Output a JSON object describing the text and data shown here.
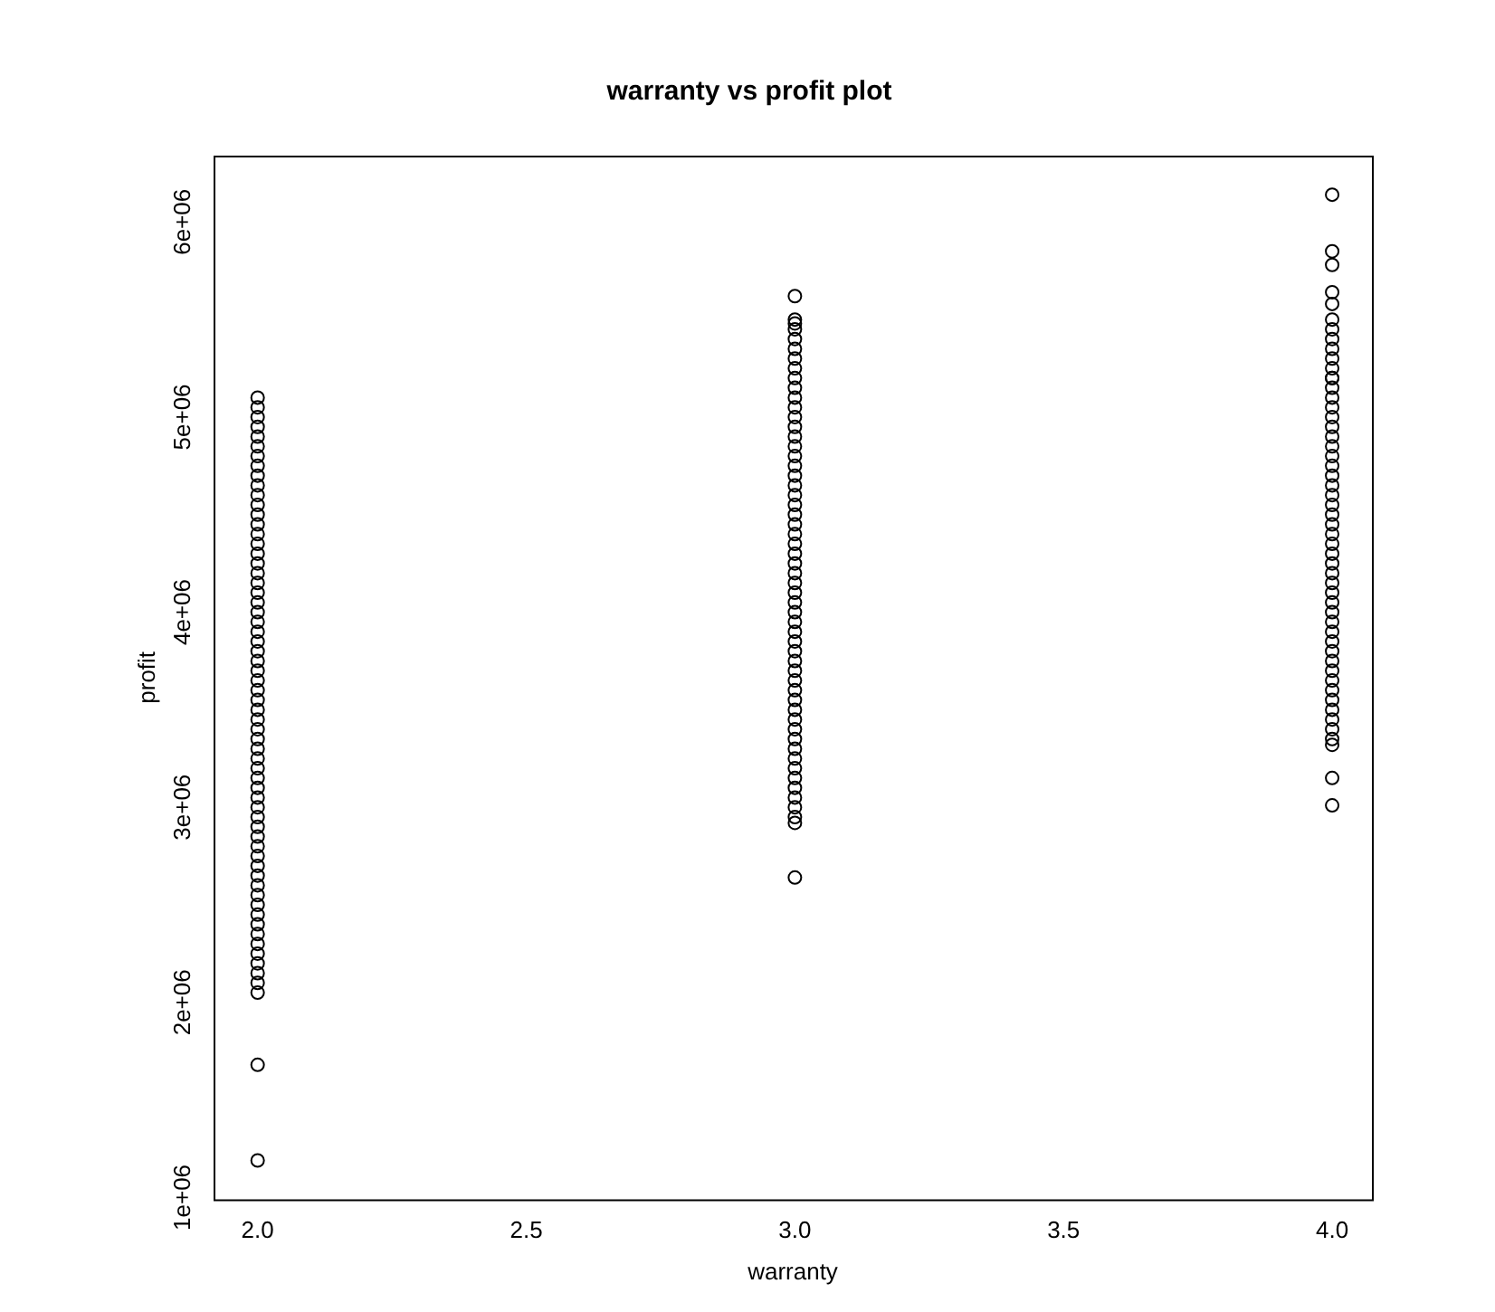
{
  "chart_data": {
    "type": "scatter",
    "title": "warranty vs profit plot",
    "xlabel": "warranty",
    "ylabel": "profit",
    "marker": "circle",
    "grid": false,
    "legend": false,
    "xlim": [
      1.918,
      4.074
    ],
    "ylim": [
      990000.0,
      6340000.0
    ],
    "xticks": [
      {
        "value": 2,
        "label": "2.0"
      },
      {
        "value": 2.5,
        "label": "2.5"
      },
      {
        "value": 3,
        "label": "3.0"
      },
      {
        "value": 3.5,
        "label": "3.5"
      },
      {
        "value": 4,
        "label": "4.0"
      }
    ],
    "yticks": [
      {
        "value": 1000000.0,
        "label": "1e+06"
      },
      {
        "value": 2000000.0,
        "label": "2e+06"
      },
      {
        "value": 3000000.0,
        "label": "3e+06"
      },
      {
        "value": 4000000.0,
        "label": "4e+06"
      },
      {
        "value": 5000000.0,
        "label": "5e+06"
      },
      {
        "value": 6000000.0,
        "label": "6e+06"
      }
    ],
    "series": [
      {
        "color": "#000000",
        "x": [
          2,
          2,
          2,
          2,
          2,
          2,
          2,
          2,
          2,
          2,
          2,
          2,
          2,
          2,
          2,
          2,
          2,
          2,
          2,
          2,
          2,
          2,
          2,
          2,
          2,
          2,
          2,
          2,
          2,
          2,
          2,
          2,
          2,
          2,
          2,
          2,
          2,
          2,
          2,
          2,
          2,
          2,
          2,
          2,
          2,
          2,
          2,
          2,
          2,
          2,
          2,
          2,
          2,
          2,
          2,
          2,
          2,
          2,
          2,
          2,
          2,
          2,
          2,
          2
        ],
        "values": [
          1190000.0,
          1680000.0,
          2050000.0,
          2100000.0,
          2150000.0,
          2200000.0,
          2250000.0,
          2300000.0,
          2350000.0,
          2400000.0,
          2450000.0,
          2500000.0,
          2550000.0,
          2600000.0,
          2650000.0,
          2700000.0,
          2750000.0,
          2800000.0,
          2850000.0,
          2900000.0,
          2950000.0,
          3000000.0,
          3050000.0,
          3100000.0,
          3150000.0,
          3200000.0,
          3250000.0,
          3300000.0,
          3350000.0,
          3400000.0,
          3450000.0,
          3500000.0,
          3550000.0,
          3600000.0,
          3650000.0,
          3700000.0,
          3750000.0,
          3800000.0,
          3850000.0,
          3900000.0,
          3950000.0,
          4000000.0,
          4050000.0,
          4100000.0,
          4150000.0,
          4200000.0,
          4250000.0,
          4300000.0,
          4350000.0,
          4400000.0,
          4450000.0,
          4500000.0,
          4550000.0,
          4600000.0,
          4650000.0,
          4700000.0,
          4750000.0,
          4800000.0,
          4850000.0,
          4900000.0,
          4950000.0,
          5000000.0,
          5050000.0,
          5100000.0
        ]
      },
      {
        "color": "#000000",
        "x": [
          3,
          3,
          3,
          3,
          3,
          3,
          3,
          3,
          3,
          3,
          3,
          3,
          3,
          3,
          3,
          3,
          3,
          3,
          3,
          3,
          3,
          3,
          3,
          3,
          3,
          3,
          3,
          3,
          3,
          3,
          3,
          3,
          3,
          3,
          3,
          3,
          3,
          3,
          3,
          3,
          3,
          3,
          3,
          3,
          3,
          3,
          3,
          3,
          3,
          3,
          3,
          3,
          3,
          3,
          3,
          3
        ],
        "values": [
          2640000.0,
          2920000.0,
          2950000.0,
          3000000.0,
          3050000.0,
          3100000.0,
          3150000.0,
          3200000.0,
          3250000.0,
          3300000.0,
          3350000.0,
          3400000.0,
          3450000.0,
          3500000.0,
          3550000.0,
          3600000.0,
          3650000.0,
          3700000.0,
          3750000.0,
          3800000.0,
          3850000.0,
          3900000.0,
          3950000.0,
          4000000.0,
          4050000.0,
          4100000.0,
          4150000.0,
          4200000.0,
          4250000.0,
          4300000.0,
          4350000.0,
          4400000.0,
          4450000.0,
          4500000.0,
          4550000.0,
          4600000.0,
          4650000.0,
          4700000.0,
          4750000.0,
          4800000.0,
          4850000.0,
          4900000.0,
          4950000.0,
          5000000.0,
          5050000.0,
          5100000.0,
          5150000.0,
          5200000.0,
          5250000.0,
          5300000.0,
          5350000.0,
          5400000.0,
          5450000.0,
          5480000.0,
          5620000.0,
          5500000.0
        ]
      },
      {
        "color": "#000000",
        "x": [
          4,
          4,
          4,
          4,
          4,
          4,
          4,
          4,
          4,
          4,
          4,
          4,
          4,
          4,
          4,
          4,
          4,
          4,
          4,
          4,
          4,
          4,
          4,
          4,
          4,
          4,
          4,
          4,
          4,
          4,
          4,
          4,
          4,
          4,
          4,
          4,
          4,
          4,
          4,
          4,
          4,
          4,
          4,
          4,
          4,
          4,
          4,
          4,
          4,
          4,
          4,
          4,
          4
        ],
        "values": [
          3010000.0,
          3150000.0,
          3320000.0,
          3350000.0,
          3400000.0,
          3450000.0,
          3500000.0,
          3550000.0,
          3600000.0,
          3650000.0,
          3700000.0,
          3750000.0,
          3800000.0,
          3850000.0,
          3900000.0,
          3950000.0,
          4000000.0,
          4050000.0,
          4100000.0,
          4150000.0,
          4200000.0,
          4250000.0,
          4300000.0,
          4350000.0,
          4400000.0,
          4450000.0,
          4500000.0,
          4550000.0,
          4600000.0,
          4650000.0,
          4700000.0,
          4750000.0,
          4800000.0,
          4850000.0,
          4900000.0,
          4950000.0,
          5000000.0,
          5050000.0,
          5100000.0,
          5150000.0,
          5200000.0,
          5250000.0,
          5300000.0,
          5350000.0,
          5400000.0,
          5450000.0,
          5500000.0,
          5580000.0,
          5640000.0,
          5780000.0,
          5850000.0,
          6140000.0,
          5200000.0
        ]
      }
    ]
  }
}
